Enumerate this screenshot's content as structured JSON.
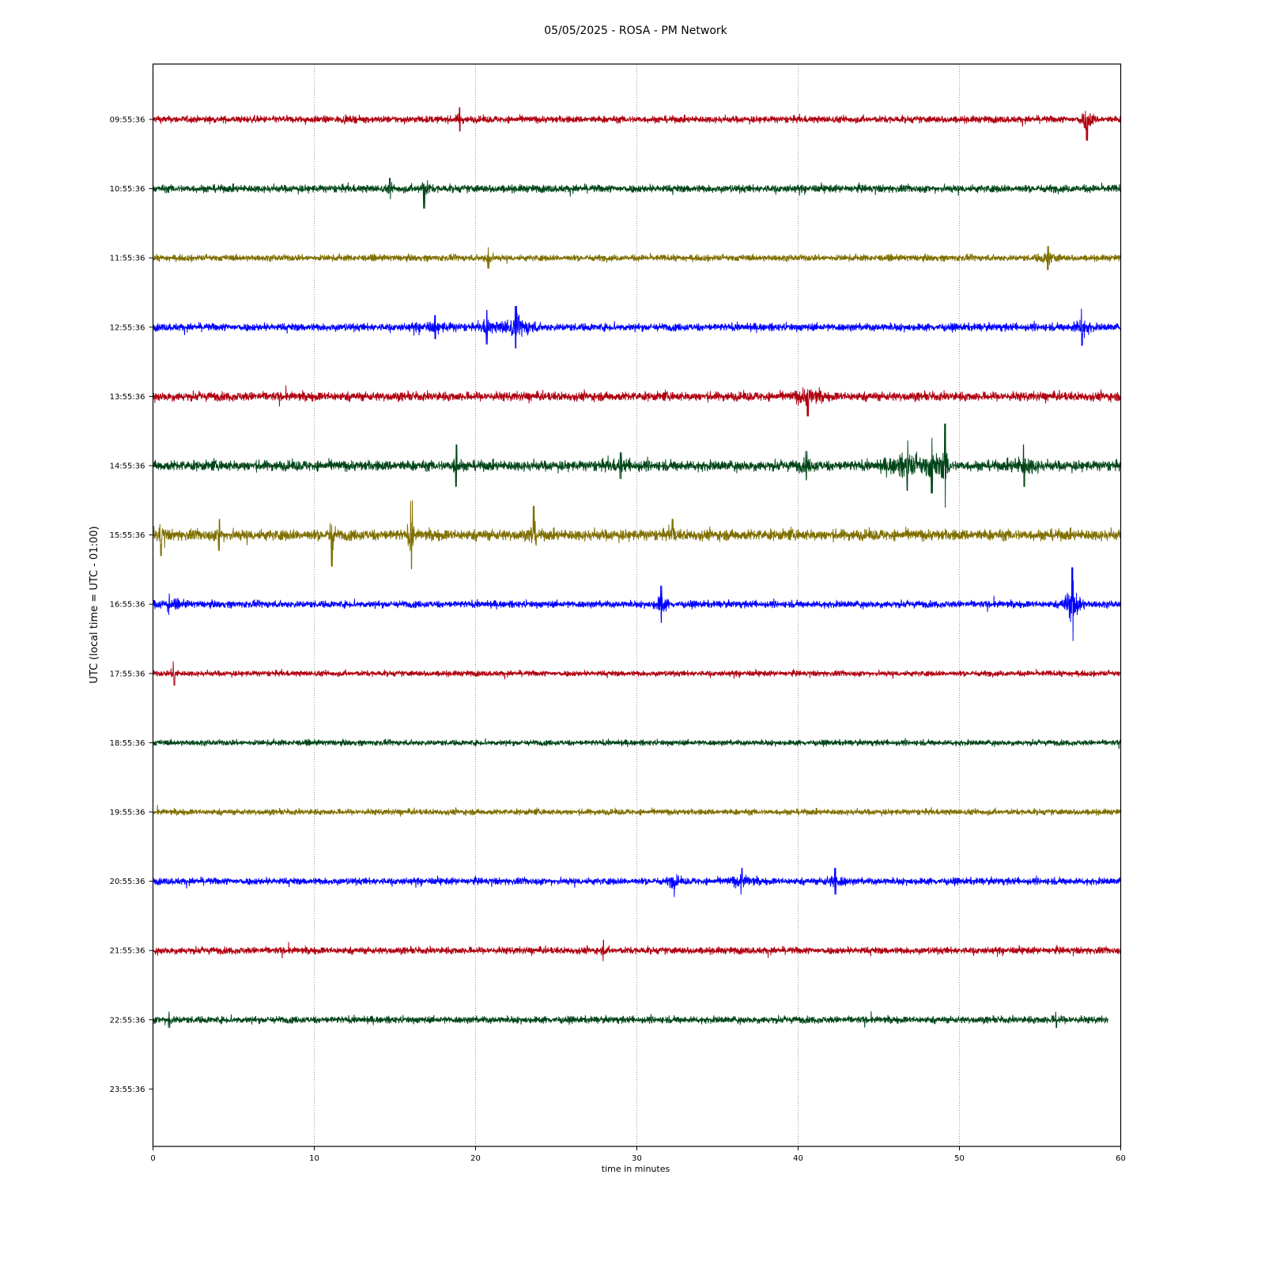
{
  "chart_data": {
    "type": "line",
    "title": "05/05/2025 - ROSA - PM Network",
    "xlabel": "time in minutes",
    "ylabel": "UTC (local time = UTC - 01:00)",
    "xlim": [
      0,
      60
    ],
    "x_ticks": [
      "0",
      "10",
      "20",
      "30",
      "40",
      "50",
      "60"
    ],
    "y_ticks": [
      "09:55:36",
      "10:55:36",
      "11:55:36",
      "12:55:36",
      "13:55:36",
      "14:55:36",
      "15:55:36",
      "16:55:36",
      "17:55:36",
      "18:55:36",
      "19:55:36",
      "20:55:36",
      "21:55:36",
      "22:55:36",
      "23:55:36"
    ],
    "grid": "vertical dotted lines at x ticks",
    "colors": [
      "#b00010",
      "#004618",
      "#7f6f00",
      "#0000ff"
    ],
    "series": [
      {
        "row": "09:55:36",
        "color": "#b00010",
        "noise": 0.5,
        "x_end": 60,
        "events": [
          {
            "x": 19.0,
            "amp": 0.9,
            "dur": 0.3
          },
          {
            "x": 57.9,
            "amp": 1.6,
            "dur": 0.6
          }
        ]
      },
      {
        "row": "10:55:36",
        "color": "#004618",
        "noise": 0.55,
        "x_end": 60,
        "events": [
          {
            "x": 16.8,
            "amp": 1.5,
            "dur": 0.5
          },
          {
            "x": 14.7,
            "amp": 0.8,
            "dur": 0.3
          }
        ]
      },
      {
        "row": "11:55:36",
        "color": "#7f6f00",
        "noise": 0.45,
        "x_end": 60,
        "events": [
          {
            "x": 20.8,
            "amp": 0.8,
            "dur": 0.5
          },
          {
            "x": 55.5,
            "amp": 0.9,
            "dur": 1.0
          }
        ]
      },
      {
        "row": "12:55:36",
        "color": "#0000ff",
        "noise": 0.55,
        "x_end": 60,
        "events": [
          {
            "x": 17.5,
            "amp": 0.9,
            "dur": 2.0
          },
          {
            "x": 20.7,
            "amp": 1.3,
            "dur": 0.6
          },
          {
            "x": 22.5,
            "amp": 1.6,
            "dur": 1.6
          },
          {
            "x": 57.6,
            "amp": 1.4,
            "dur": 0.8
          }
        ]
      },
      {
        "row": "13:55:36",
        "color": "#b00010",
        "noise": 0.65,
        "x_end": 60,
        "events": [
          {
            "x": 40.6,
            "amp": 1.5,
            "dur": 1.2
          }
        ]
      },
      {
        "row": "14:55:36",
        "color": "#004618",
        "noise": 0.75,
        "x_end": 60,
        "events": [
          {
            "x": 18.8,
            "amp": 1.6,
            "dur": 0.4
          },
          {
            "x": 29.0,
            "amp": 1.0,
            "dur": 2.0
          },
          {
            "x": 40.5,
            "amp": 1.1,
            "dur": 1.0
          },
          {
            "x": 46.8,
            "amp": 1.9,
            "dur": 2.0
          },
          {
            "x": 48.3,
            "amp": 2.1,
            "dur": 1.2
          },
          {
            "x": 49.1,
            "amp": 3.2,
            "dur": 0.4
          },
          {
            "x": 54.0,
            "amp": 1.6,
            "dur": 1.2
          }
        ]
      },
      {
        "row": "15:55:36",
        "color": "#7f6f00",
        "noise": 0.8,
        "x_end": 60,
        "events": [
          {
            "x": 0.5,
            "amp": 1.6,
            "dur": 0.4
          },
          {
            "x": 4.1,
            "amp": 1.2,
            "dur": 0.3
          },
          {
            "x": 11.1,
            "amp": 2.4,
            "dur": 0.3
          },
          {
            "x": 16.0,
            "amp": 2.6,
            "dur": 0.3
          },
          {
            "x": 23.6,
            "amp": 2.2,
            "dur": 0.3
          },
          {
            "x": 32.2,
            "amp": 1.2,
            "dur": 0.3
          }
        ]
      },
      {
        "row": "16:55:36",
        "color": "#0000ff",
        "noise": 0.5,
        "x_end": 60,
        "events": [
          {
            "x": 1.0,
            "amp": 0.8,
            "dur": 1.5
          },
          {
            "x": 31.5,
            "amp": 1.4,
            "dur": 0.6
          },
          {
            "x": 57.0,
            "amp": 2.8,
            "dur": 0.8
          }
        ]
      },
      {
        "row": "17:55:36",
        "color": "#b00010",
        "noise": 0.4,
        "x_end": 60,
        "events": [
          {
            "x": 1.3,
            "amp": 0.9,
            "dur": 0.3
          }
        ]
      },
      {
        "row": "18:55:36",
        "color": "#004618",
        "noise": 0.4,
        "x_end": 60,
        "events": []
      },
      {
        "row": "19:55:36",
        "color": "#7f6f00",
        "noise": 0.42,
        "x_end": 60,
        "events": []
      },
      {
        "row": "20:55:36",
        "color": "#0000ff",
        "noise": 0.5,
        "x_end": 60,
        "events": [
          {
            "x": 32.3,
            "amp": 1.2,
            "dur": 0.5
          },
          {
            "x": 36.5,
            "amp": 1.0,
            "dur": 1.2
          },
          {
            "x": 42.3,
            "amp": 1.0,
            "dur": 1.0
          }
        ]
      },
      {
        "row": "21:55:36",
        "color": "#b00010",
        "noise": 0.5,
        "x_end": 60,
        "events": [
          {
            "x": 27.9,
            "amp": 0.8,
            "dur": 0.3
          }
        ]
      },
      {
        "row": "22:55:36",
        "color": "#004618",
        "noise": 0.5,
        "x_end": 59.2,
        "events": [
          {
            "x": 1.0,
            "amp": 0.6,
            "dur": 1.0
          },
          {
            "x": 56.0,
            "amp": 0.6,
            "dur": 2.0
          }
        ]
      }
    ]
  }
}
